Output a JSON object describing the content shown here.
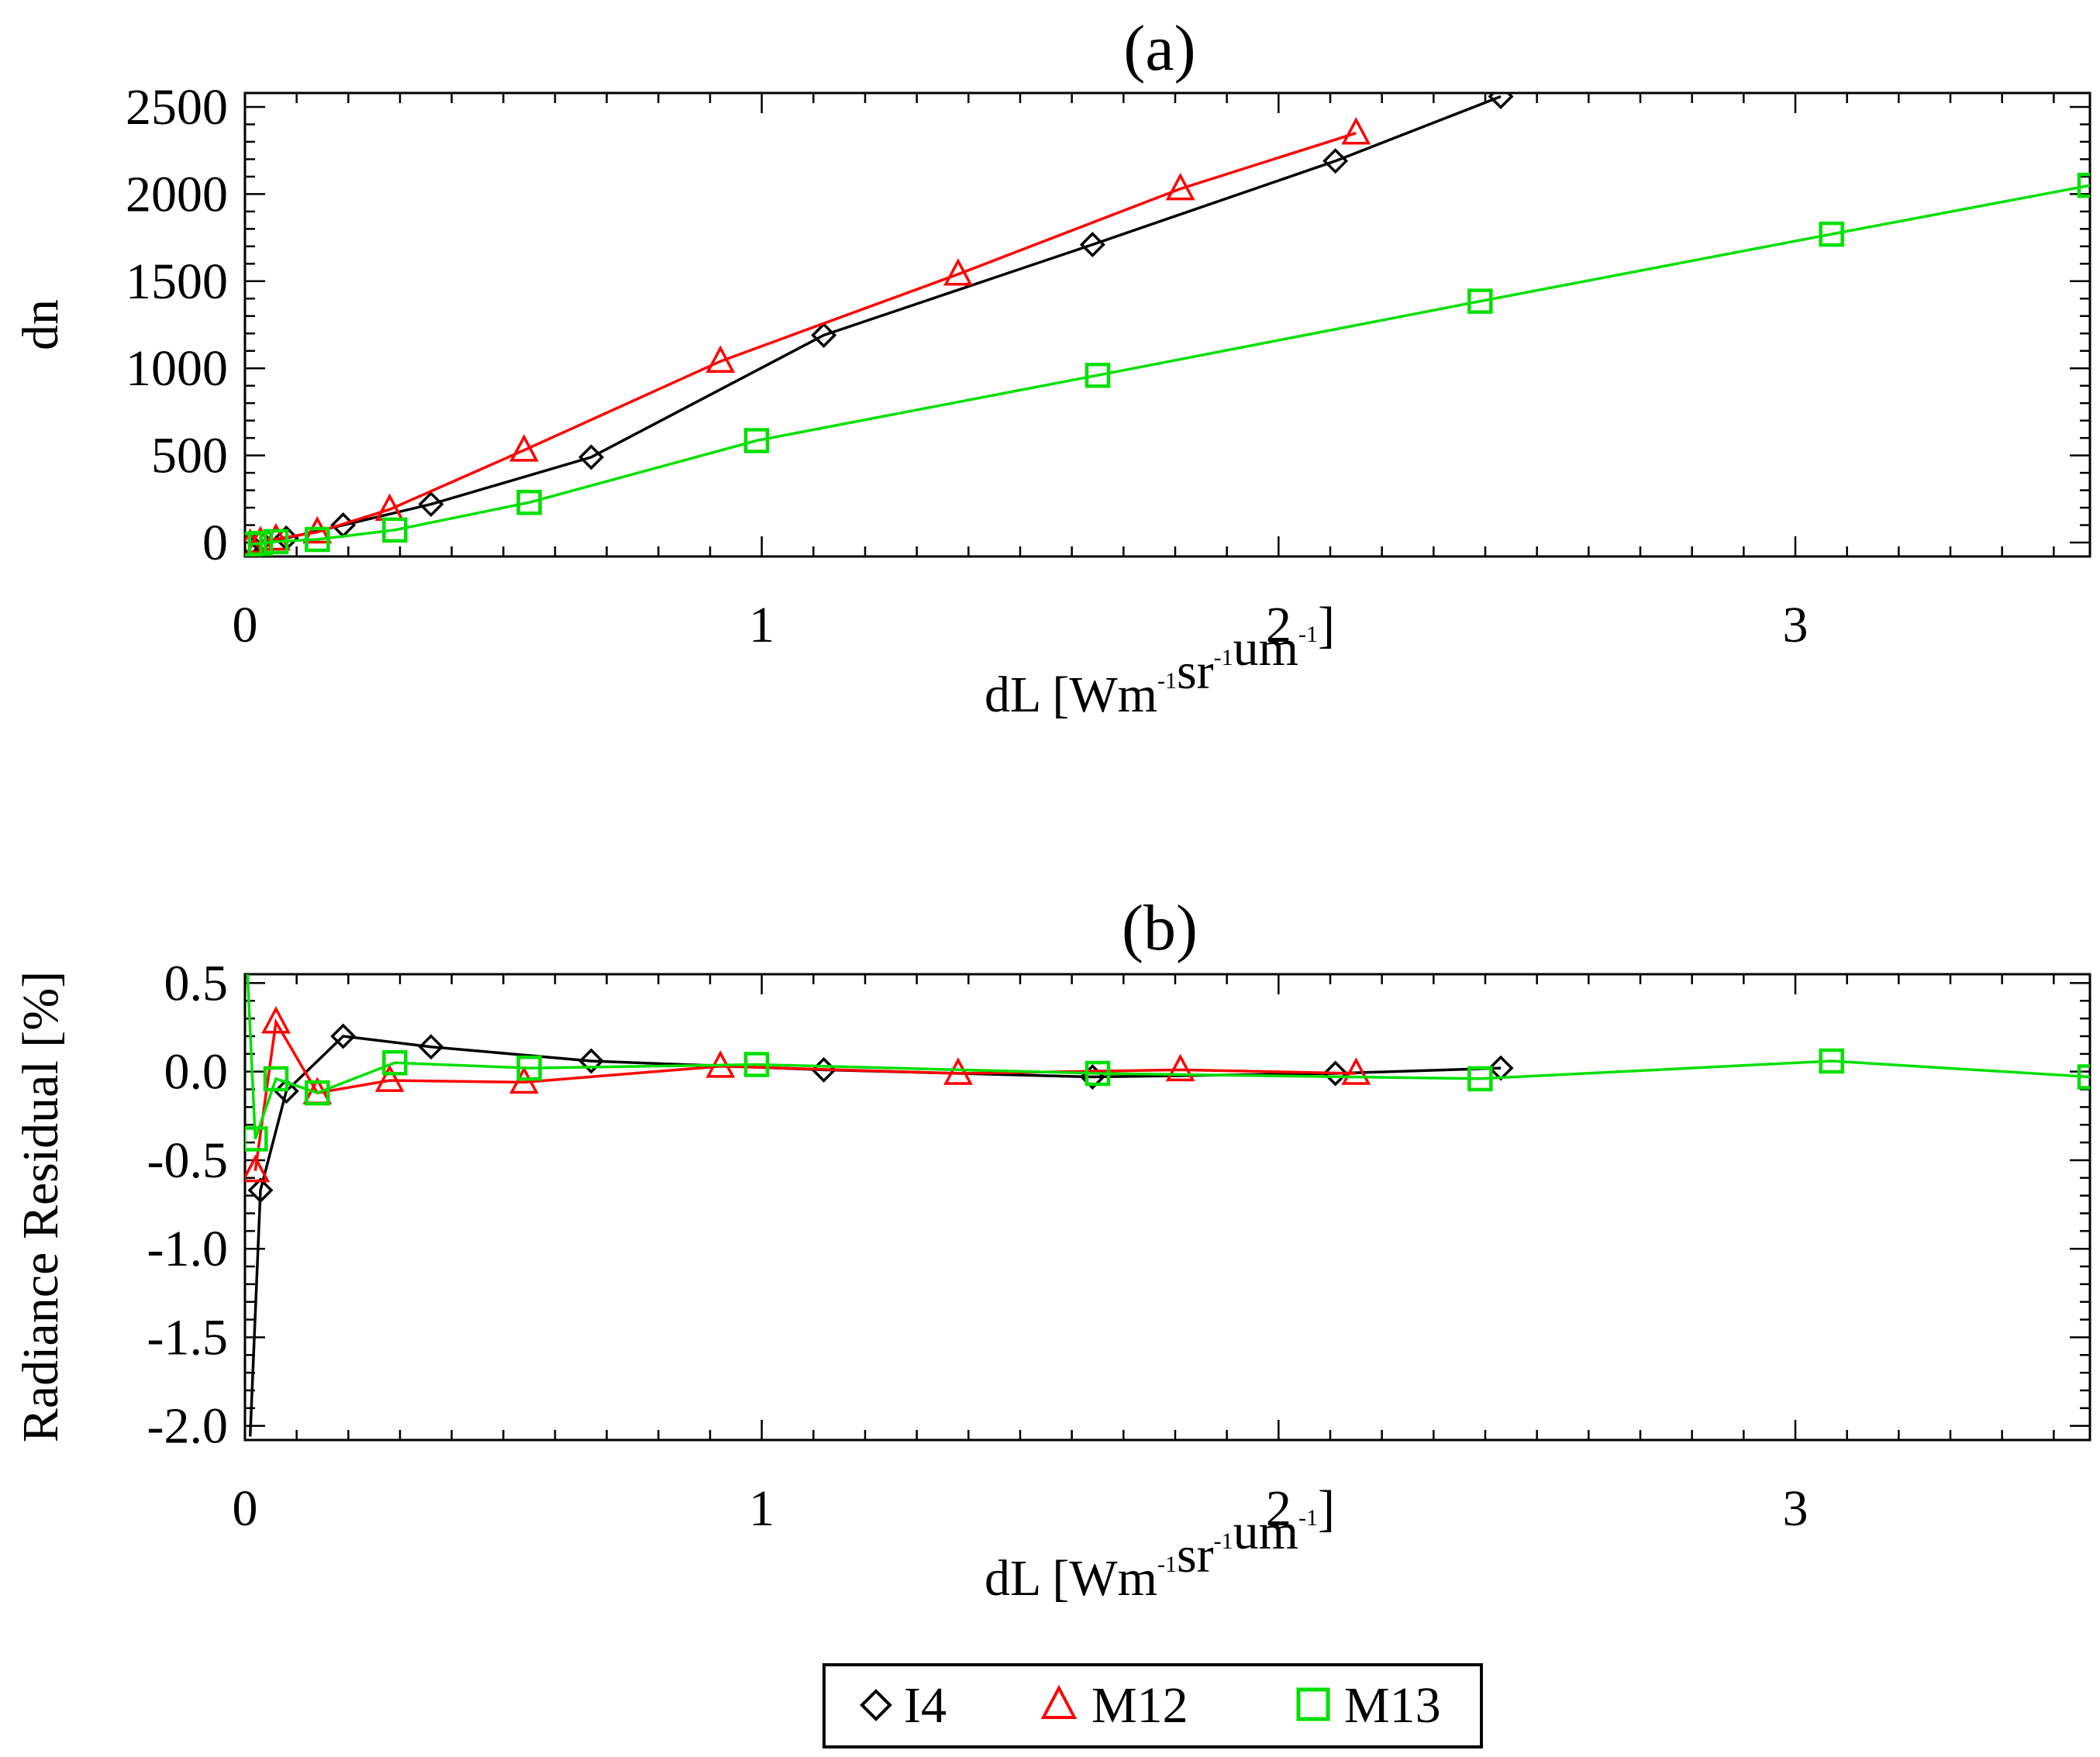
{
  "legend": {
    "placement": "bottom-center",
    "entries": [
      {
        "name": "I4",
        "marker": "diamond",
        "color": "#000000"
      },
      {
        "name": "M12",
        "marker": "triangle",
        "color": "#ff0000"
      },
      {
        "name": "M13",
        "marker": "square",
        "color": "#00e000"
      }
    ]
  },
  "chart_data": [
    {
      "type": "line",
      "title": "(a)",
      "xlabel": {
        "prefix": "dL [Wm",
        "sup1": "-1",
        "mid1": "sr",
        "sup2": "-1",
        "mid2": "um",
        "sup3": "-1",
        "suffix": "]"
      },
      "ylabel": "dn",
      "xlim": [
        0,
        3.57
      ],
      "ylim": [
        -80,
        2580
      ],
      "x_ticks": [
        0,
        1,
        2,
        3
      ],
      "x_tick_labels": [
        "0",
        "1",
        "2",
        "3"
      ],
      "y_ticks": [
        0,
        500,
        1000,
        1500,
        2000,
        2500
      ],
      "y_tick_labels": [
        "0",
        "500",
        "1000",
        "1500",
        "2000",
        "2500"
      ],
      "series": [
        {
          "name": "I4",
          "marker": "diamond",
          "color": "#000000",
          "x": [
            0.01,
            0.03,
            0.08,
            0.19,
            0.36,
            0.67,
            1.12,
            1.64,
            2.11,
            2.43
          ],
          "y": [
            -10,
            8,
            25,
            100,
            220,
            490,
            1190,
            1710,
            2190,
            2560
          ]
        },
        {
          "name": "M12",
          "marker": "triangle",
          "color": "#ff0000",
          "x": [
            0.01,
            0.03,
            0.06,
            0.14,
            0.28,
            0.54,
            0.92,
            1.38,
            1.81,
            2.15
          ],
          "y": [
            -10,
            4,
            20,
            60,
            190,
            530,
            1040,
            1540,
            2030,
            2350
          ]
        },
        {
          "name": "M13",
          "marker": "square",
          "color": "#00e000",
          "x": [
            0.01,
            0.03,
            0.06,
            0.14,
            0.29,
            0.55,
            0.99,
            1.65,
            2.39,
            3.07,
            3.57
          ],
          "y": [
            -10,
            -5,
            5,
            18,
            72,
            230,
            585,
            960,
            1385,
            1770,
            2050
          ]
        }
      ]
    },
    {
      "type": "line",
      "title": "(b)",
      "xlabel": {
        "prefix": "dL [Wm",
        "sup1": "-1",
        "mid1": "sr",
        "sup2": "-1",
        "mid2": "um",
        "sup3": "-1",
        "suffix": "]"
      },
      "ylabel": "Radiance Residual [%]",
      "xlim": [
        0,
        3.57
      ],
      "ylim": [
        -2.08,
        0.55
      ],
      "x_ticks": [
        0,
        1,
        2,
        3
      ],
      "x_tick_labels": [
        "0",
        "1",
        "2",
        "3"
      ],
      "y_ticks": [
        0.5,
        0.0,
        -0.5,
        -1.0,
        -1.5,
        -2.0
      ],
      "y_tick_labels": [
        "0.5",
        "0.0",
        "-0.5",
        "-1.0",
        "-1.5",
        "-2.0"
      ],
      "series": [
        {
          "name": "I4",
          "marker": "diamond",
          "color": "#000000",
          "x": [
            0.01,
            0.03,
            0.08,
            0.19,
            0.36,
            0.67,
            1.12,
            1.64,
            2.11,
            2.43
          ],
          "y": [
            -2.06,
            -0.67,
            -0.11,
            0.2,
            0.14,
            0.06,
            0.01,
            -0.03,
            -0.01,
            0.02
          ],
          "markers_from": 1
        },
        {
          "name": "M12",
          "marker": "triangle",
          "color": "#ff0000",
          "x": [
            0.02,
            0.06,
            0.14,
            0.28,
            0.54,
            0.92,
            1.38,
            1.81,
            2.15
          ],
          "y": [
            -0.56,
            0.28,
            -0.12,
            -0.05,
            -0.06,
            0.03,
            -0.01,
            0.01,
            -0.01
          ]
        },
        {
          "name": "M13",
          "marker": "square",
          "color": "#00e000",
          "x": [
            0.005,
            0.02,
            0.06,
            0.14,
            0.29,
            0.55,
            0.99,
            1.65,
            2.39,
            3.07,
            3.57
          ],
          "y": [
            0.55,
            -0.38,
            -0.04,
            -0.12,
            0.05,
            0.02,
            0.04,
            -0.01,
            -0.04,
            0.06,
            -0.03
          ],
          "markers_from": 1
        }
      ]
    }
  ]
}
